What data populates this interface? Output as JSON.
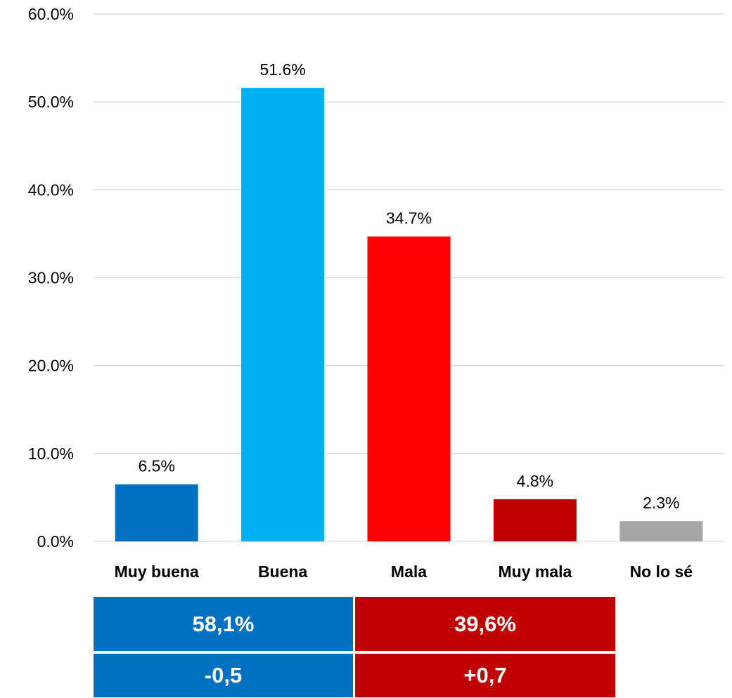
{
  "chart_data": {
    "type": "bar",
    "title": "",
    "xlabel": "",
    "ylabel": "",
    "categories": [
      "Muy buena",
      "Buena",
      "Mala",
      "Muy mala",
      "No lo sé"
    ],
    "values": [
      6.5,
      51.6,
      34.7,
      4.8,
      2.3
    ],
    "value_labels": [
      "6.5%",
      "51.6%",
      "34.7%",
      "4.8%",
      "2.3%"
    ],
    "colors": [
      "#0070c0",
      "#00b0f0",
      "#ff0000",
      "#c00000",
      "#a6a6a6"
    ],
    "ylim": [
      0,
      60
    ],
    "yticks": [
      0,
      10,
      20,
      30,
      40,
      50,
      60
    ],
    "ytick_labels": [
      "0.0%",
      "10.0%",
      "20.0%",
      "30.0%",
      "40.0%",
      "50.0%",
      "60.0%"
    ],
    "grid": true,
    "grid_color": "#d9d9d9",
    "legend": "none"
  },
  "summary_table": {
    "rows": [
      {
        "positive": "58,1%",
        "negative": "39,6%"
      },
      {
        "positive": "-0,5",
        "negative": "+0,7"
      }
    ],
    "positive_color": "#0070c0",
    "negative_color": "#c00000"
  }
}
